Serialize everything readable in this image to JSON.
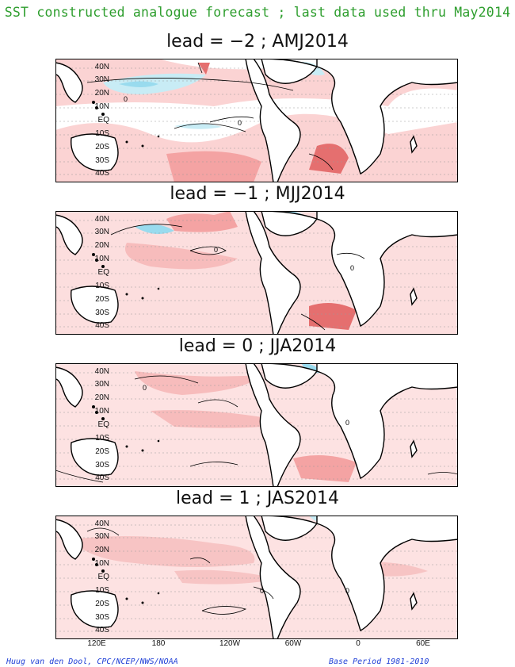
{
  "header": {
    "title": "SST constructed analogue forecast ; last data used thru May2014"
  },
  "panels": [
    {
      "title": "lead = −2 ; AMJ2014",
      "lead": -2,
      "season": "AMJ2014"
    },
    {
      "title": "lead = −1 ; MJJ2014",
      "lead": -1,
      "season": "MJJ2014"
    },
    {
      "title": "lead = 0 ; JJA2014",
      "lead": 0,
      "season": "JJA2014"
    },
    {
      "title": "lead = 1 ; JAS2014",
      "lead": 1,
      "season": "JAS2014"
    }
  ],
  "y_axis": {
    "labels": [
      "40N",
      "30N",
      "20N",
      "10N",
      "EQ",
      "10S",
      "20S",
      "30S",
      "40S"
    ]
  },
  "x_axis": {
    "labels": [
      "120E",
      "180",
      "120W",
      "60W",
      "0",
      "60E"
    ]
  },
  "contour_labels": {
    "zero": "0"
  },
  "footer": {
    "author": "Huug van den Dool, CPC/NCEP/NWS/NOAA",
    "base_period": "Base Period 1981-2010"
  },
  "colors": {
    "title": "#2e9e2e",
    "credit": "#1f3fd6",
    "warm_light": "#fbd3d3",
    "warm_medium": "#f4a3a3",
    "warm_strong": "#e56f6f",
    "cool_light": "#c8ecf5",
    "cool_medium": "#99dbee"
  }
}
